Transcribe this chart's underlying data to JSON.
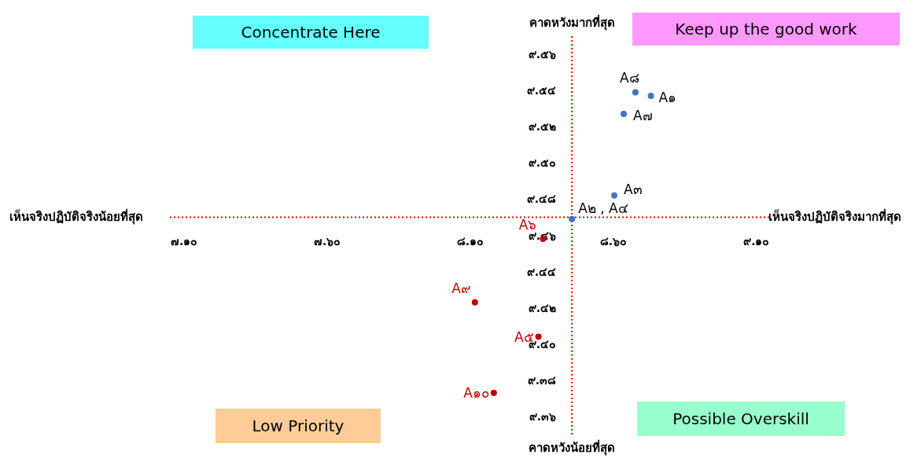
{
  "chart_data": {
    "type": "scatter",
    "annotations": [
      "Concentrate Here",
      "Keep up the good work",
      "Low Priority",
      "Possible Overskill",
      "คาดหวังมากที่สุด",
      "คาดหวังน้อยที่สุด",
      "เห็นจริงปฏิบัติจริงน้อยที่สุด",
      "เห็นจริงปฏิบัติจริงมากที่สุด"
    ],
    "series": [
      {
        "color": "#4472c4",
        "x": [
          8.677,
          8.731,
          8.636,
          8.603,
          8.455
        ],
        "values": [
          9.539,
          9.537,
          9.527,
          9.482,
          9.469
        ],
        "value_labels": [
          "A๘",
          "A๑",
          "A๗",
          "A๓",
          "A๒ , A๔"
        ]
      },
      {
        "color": "#c00000",
        "x": [
          8.354,
          8.116,
          8.338,
          8.182
        ],
        "values": [
          9.458,
          9.423,
          9.404,
          9.373
        ],
        "value_labels": [
          "A๖",
          "A๙",
          "A๕",
          "A๑๐"
        ]
      }
    ],
    "marker": "circle",
    "xlim": [
      7.05,
      9.15
    ],
    "xticks": [
      {
        "value": 7.1,
        "label": "๗.๑๐"
      },
      {
        "value": 7.6,
        "label": "๗.๖๐"
      },
      {
        "value": 8.1,
        "label": "๘.๑๐"
      },
      {
        "value": 8.6,
        "label": "๘.๖๐"
      },
      {
        "value": 9.1,
        "label": "๙.๑๐"
      }
    ],
    "ylim": [
      9.35,
      9.57
    ],
    "yticks": [
      {
        "value": 9.36,
        "label": "๙.๓๖"
      },
      {
        "value": 9.38,
        "label": "๙.๓๘"
      },
      {
        "value": 9.4,
        "label": "๙.๔๐"
      },
      {
        "value": 9.42,
        "label": "๙.๔๒"
      },
      {
        "value": 9.44,
        "label": "๙.๔๔"
      },
      {
        "value": 9.46,
        "label": "๙.๔๖"
      },
      {
        "value": 9.48,
        "label": "๙.๔๘"
      },
      {
        "value": 9.5,
        "label": "๙.๕๐"
      },
      {
        "value": 9.52,
        "label": "๙.๕๒"
      },
      {
        "value": 9.54,
        "label": "๙.๕๔"
      },
      {
        "value": 9.56,
        "label": "๙.๕๖"
      }
    ],
    "ref_lines": [
      {
        "axis": "x",
        "value": 8.455,
        "color": "#ff0000",
        "line_style": "dotted"
      },
      {
        "axis": "y",
        "value": 9.47,
        "color": "#ff0000",
        "line_style": "dotted"
      }
    ],
    "grid": false
  }
}
